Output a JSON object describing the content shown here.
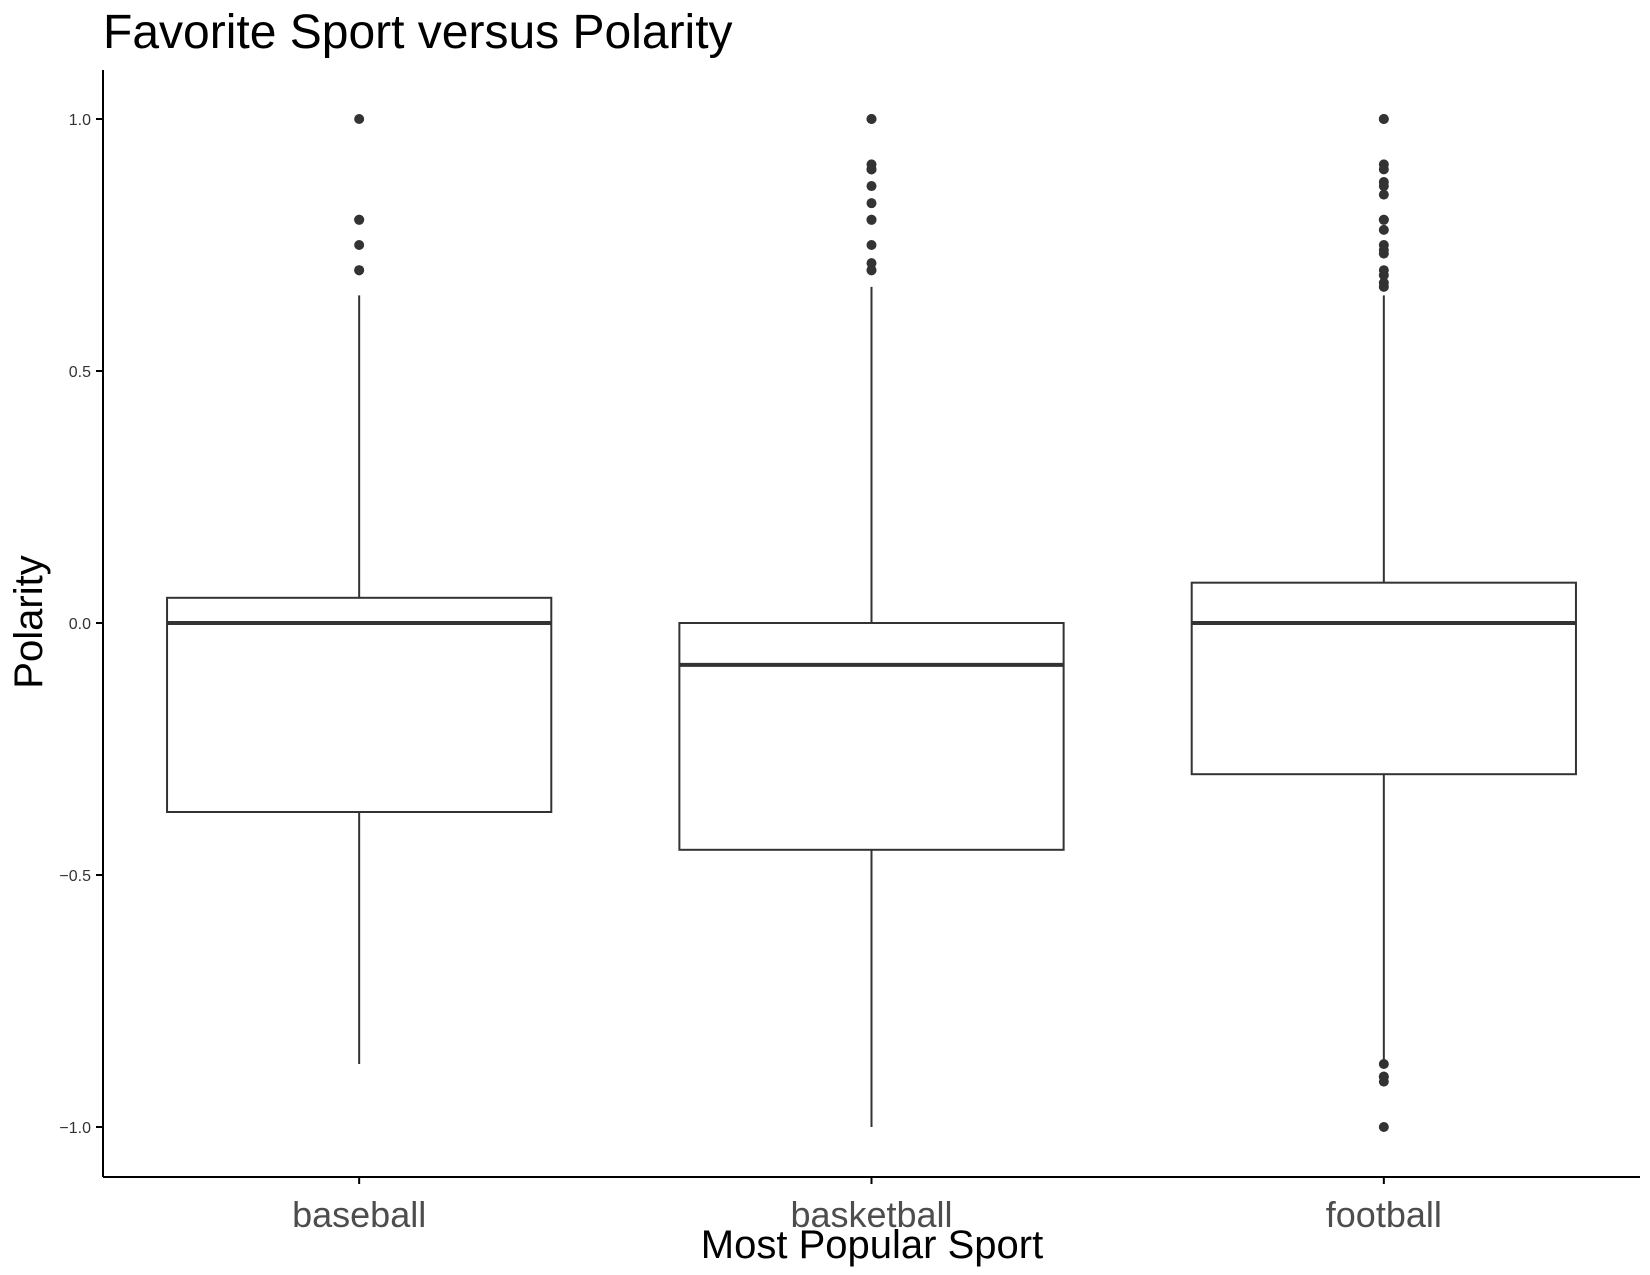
{
  "chart_data": {
    "type": "box",
    "title": "Favorite Sport versus Polarity",
    "xlabel": "Most Popular Sport",
    "ylabel": "Polarity",
    "ylim": [
      -1.1,
      1.1
    ],
    "y_ticks": [
      {
        "value": 1.0,
        "label": "1.0"
      },
      {
        "value": 0.5,
        "label": "0.5"
      },
      {
        "value": 0.0,
        "label": "0.0"
      },
      {
        "value": -0.5,
        "label": "−0.5"
      },
      {
        "value": -1.0,
        "label": "−1.0"
      }
    ],
    "grid": false,
    "categories": [
      "baseball",
      "basketball",
      "football"
    ],
    "boxes": [
      {
        "category": "baseball",
        "whisker_low": -0.875,
        "q1": -0.375,
        "median": 0.0,
        "q3": 0.05,
        "whisker_high": 0.65,
        "outliers": [
          1.0,
          0.8,
          0.8,
          0.75,
          0.7,
          0.7
        ]
      },
      {
        "category": "basketball",
        "whisker_low": -1.0,
        "q1": -0.45,
        "median": -0.083,
        "q3": 0.0,
        "whisker_high": 0.667,
        "outliers": [
          1.0,
          1.0,
          0.91,
          0.9,
          0.9,
          0.867,
          0.833,
          0.8,
          0.8,
          0.75,
          0.714,
          0.7,
          0.7
        ]
      },
      {
        "category": "football",
        "whisker_low": -0.875,
        "q1": -0.3,
        "median": 0.0,
        "q3": 0.08,
        "whisker_high": 0.65,
        "outliers": [
          1.0,
          1.0,
          0.91,
          0.9,
          0.875,
          0.867,
          0.85,
          0.8,
          0.8,
          0.78,
          0.75,
          0.74,
          0.733,
          0.7,
          0.69,
          0.675,
          0.667,
          -0.875,
          -0.9,
          -0.9,
          -0.91,
          -1.0
        ]
      }
    ],
    "colors": {
      "box_stroke": "#333333",
      "box_fill": "#ffffff",
      "outlier": "#333333",
      "axis": "#000000"
    }
  }
}
